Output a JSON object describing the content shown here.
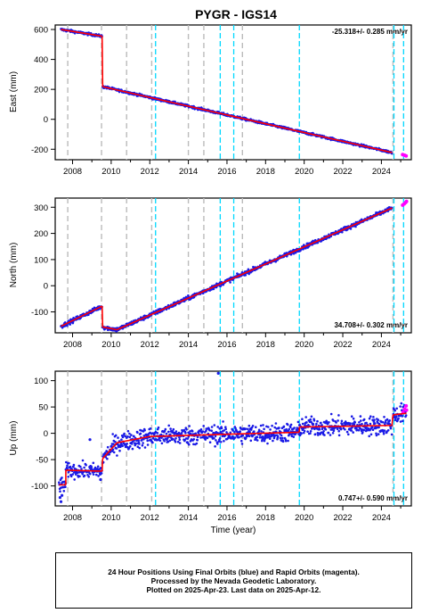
{
  "title": "PYGR - IGS14",
  "x_axis_label": "Time (year)",
  "caption": {
    "line1": "24 Hour Positions Using Final Orbits (blue) and Rapid Orbits (magenta).",
    "line2": "Processed by the Nevada Geodetic Laboratory.",
    "line3": "Plotted on 2025-Apr-23. Last data on 2025-Apr-12."
  },
  "colors": {
    "final_orbits": "#1a1ae6",
    "rapid_orbits": "#ff00ff",
    "model_fit": "#ff0000",
    "antenna_change_line": "#bbbbbb",
    "equipment_change_line": "#00d8ff"
  },
  "chart_data": [
    {
      "type": "scatter",
      "ylabel": "East (mm)",
      "rate": "-25.318+/- 0.285 mm/yr",
      "rate_position": "top-right",
      "xlim": [
        2007.1,
        2025.55
      ],
      "ylim": [
        -270,
        630
      ],
      "x_ticks": [
        2008,
        2010,
        2012,
        2014,
        2016,
        2018,
        2020,
        2022,
        2024
      ],
      "y_ticks": [
        -200,
        0,
        200,
        400,
        600
      ],
      "trend_segments": [
        {
          "from": 2007.4,
          "to": 2009.53,
          "y_start": 600,
          "y_end": 555
        },
        {
          "from": 2009.56,
          "to": 2024.55,
          "y_start": 218,
          "y_end": -222
        }
      ],
      "rapid_points": [
        [
          2025.1,
          -236
        ],
        [
          2025.2,
          -240
        ],
        [
          2025.28,
          -245
        ]
      ],
      "scatter_noise": 4
    },
    {
      "type": "scatter",
      "ylabel": "North (mm)",
      "rate": "34.708+/- 0.302 mm/yr",
      "rate_position": "bottom-right",
      "xlim": [
        2007.1,
        2025.55
      ],
      "ylim": [
        -180,
        335
      ],
      "x_ticks": [
        2008,
        2010,
        2012,
        2014,
        2016,
        2018,
        2020,
        2022,
        2024
      ],
      "y_ticks": [
        -100,
        0,
        100,
        200,
        300
      ],
      "trend_segments": [
        {
          "from": 2007.4,
          "to": 2009.53,
          "y_start": -155,
          "y_end": -78
        },
        {
          "from": 2009.56,
          "to": 2010.3,
          "y_start": -158,
          "y_end": -168
        },
        {
          "from": 2010.3,
          "to": 2024.55,
          "y_start": -168,
          "y_end": 297
        }
      ],
      "rapid_points": [
        [
          2025.1,
          308
        ],
        [
          2025.18,
          313
        ],
        [
          2025.25,
          318
        ],
        [
          2025.3,
          322
        ]
      ],
      "scatter_noise": 4
    },
    {
      "type": "scatter",
      "ylabel": "Up (mm)",
      "rate": "0.747+/- 0.590 mm/yr",
      "rate_position": "bottom-right",
      "xlim": [
        2007.1,
        2025.55
      ],
      "ylim": [
        -138,
        118
      ],
      "x_ticks": [
        2008,
        2010,
        2012,
        2014,
        2016,
        2018,
        2020,
        2022,
        2024
      ],
      "y_ticks": [
        -100,
        -50,
        0,
        50,
        100
      ],
      "trend_segments": [
        {
          "from": 2007.3,
          "to": 2007.65,
          "y_start": -98,
          "y_end": -98
        },
        {
          "from": 2007.65,
          "to": 2009.53,
          "y_start": -70,
          "y_end": -72
        },
        {
          "from": 2009.56,
          "to": 2010.3,
          "y_start": -48,
          "y_end": -18
        },
        {
          "from": 2010.3,
          "to": 2012.0,
          "y_start": -18,
          "y_end": -6
        },
        {
          "from": 2012.0,
          "to": 2019.75,
          "y_start": -6,
          "y_end": 2
        },
        {
          "from": 2019.75,
          "to": 2024.55,
          "y_start": 12,
          "y_end": 15
        },
        {
          "from": 2024.6,
          "to": 2025.3,
          "y_start": 35,
          "y_end": 38
        }
      ],
      "rapid_points": [
        [
          2025.12,
          40
        ],
        [
          2025.2,
          46
        ],
        [
          2025.28,
          52
        ],
        [
          2025.3,
          44
        ]
      ],
      "scatter_noise": 7,
      "outliers": [
        [
          2007.35,
          -122
        ],
        [
          2007.4,
          -130
        ],
        [
          2007.45,
          -118
        ],
        [
          2009.45,
          -88
        ],
        [
          2015.55,
          114
        ],
        [
          2008.9,
          -12
        ]
      ]
    }
  ],
  "vertical_lines": {
    "antenna_change": [
      2007.75,
      2009.5,
      2010.8,
      2012.1,
      2014.0,
      2014.8,
      2016.8,
      2024.6
    ],
    "equipment_change": [
      2012.3,
      2015.65,
      2016.35,
      2019.75,
      2024.65,
      2025.15
    ]
  }
}
